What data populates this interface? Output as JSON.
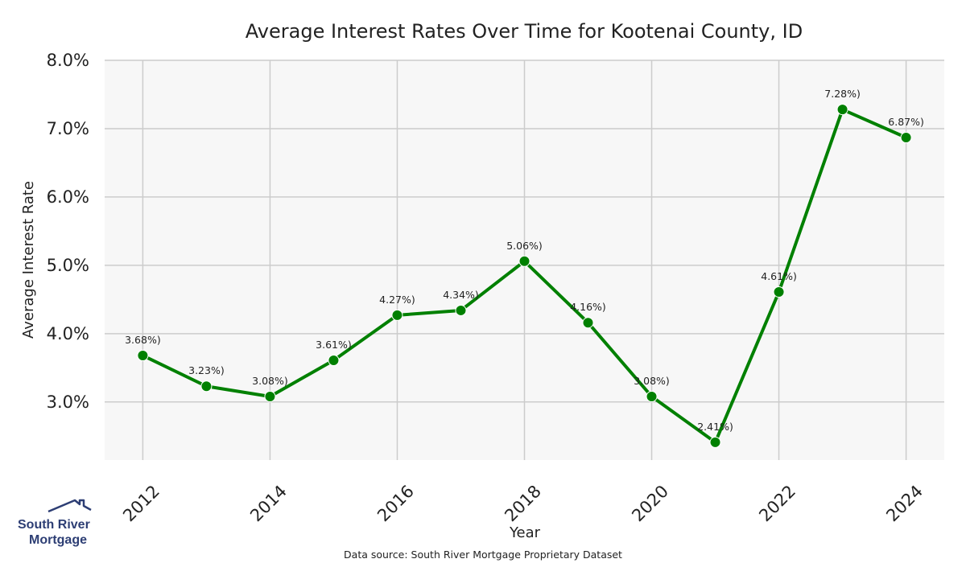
{
  "chart_data": {
    "type": "line",
    "title": "Average Interest Rates Over Time for Kootenai County, ID",
    "xlabel": "Year",
    "ylabel": "Average Interest Rate",
    "x": [
      2012,
      2013,
      2014,
      2015,
      2016,
      2017,
      2018,
      2019,
      2020,
      2021,
      2022,
      2023,
      2024
    ],
    "values": [
      3.68,
      3.23,
      3.08,
      3.61,
      4.27,
      4.34,
      5.06,
      4.16,
      3.08,
      2.41,
      4.61,
      7.28,
      6.87
    ],
    "data_labels": [
      "3.68%)",
      "3.23%)",
      "3.08%)",
      "3.61%)",
      "4.27%)",
      "4.34%)",
      "5.06%)",
      "4.16%)",
      "3.08%)",
      "2.41%)",
      "4.61%)",
      "7.28%)",
      "6.87%)"
    ],
    "xticks": [
      "2012",
      "2014",
      "2016",
      "2018",
      "2020",
      "2022",
      "2024"
    ],
    "xtick_values": [
      2012,
      2014,
      2016,
      2018,
      2020,
      2022,
      2024
    ],
    "yticks": [
      "3.0%",
      "4.0%",
      "5.0%",
      "6.0%",
      "7.0%",
      "8.0%"
    ],
    "ytick_values": [
      3,
      4,
      5,
      6,
      7,
      8
    ],
    "xlim": [
      2011.4,
      2024.6
    ],
    "ylim": [
      2.15,
      8.0
    ],
    "grid": true,
    "line_color": "#008000",
    "plot_background": "#f7f7f7",
    "grid_color": "#cccccc"
  },
  "source": "Data source: South River Mortgage Proprietary Dataset",
  "logo": {
    "line1": "South River",
    "line2": "Mortgage",
    "color": "#2d3e74"
  }
}
